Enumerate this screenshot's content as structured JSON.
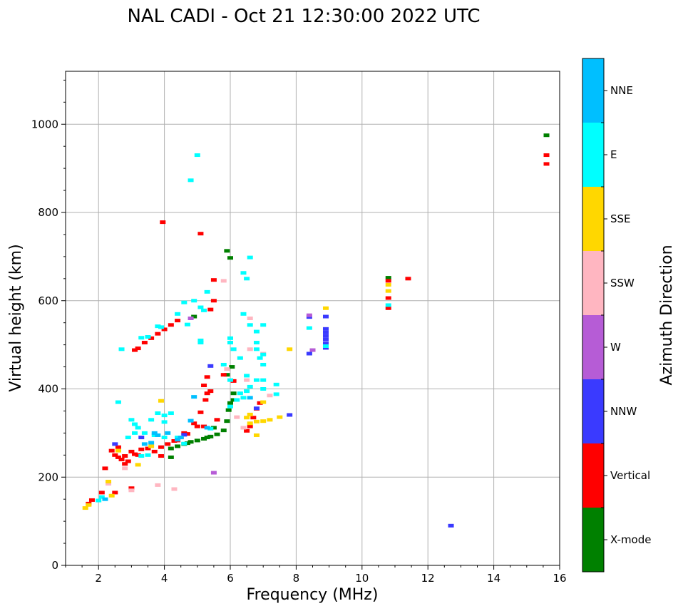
{
  "chart_data": {
    "type": "scatter",
    "title": "NAL CADI - Oct 21 12:30:00 2022 UTC",
    "xlabel": "Frequency (MHz)",
    "ylabel": "Virtual height (km)",
    "xlim": [
      1,
      16
    ],
    "ylim": [
      0,
      1120
    ],
    "xticks": [
      2,
      4,
      6,
      8,
      10,
      12,
      14,
      16
    ],
    "yticks": [
      0,
      200,
      400,
      600,
      800,
      1000
    ],
    "xtick_labels": [
      "2",
      "4",
      "6",
      "8",
      "10",
      "12",
      "14",
      "16"
    ],
    "ytick_labels": [
      "0",
      "200",
      "400",
      "600",
      "800",
      "1000"
    ],
    "grid": true,
    "colorbar": {
      "title": "Azimuth Direction",
      "categories": [
        "X-mode",
        "Vertical",
        "NNW",
        "W",
        "SSW",
        "SSE",
        "E",
        "NNE"
      ],
      "colors": [
        "#008000",
        "#ff0000",
        "#3a3aff",
        "#b65cd6",
        "#ffb6c1",
        "#ffd700",
        "#00ffff",
        "#00bfff"
      ]
    },
    "series": [
      {
        "name": "X-mode",
        "points": [
          [
            4.2,
            245
          ],
          [
            4.2,
            265
          ],
          [
            4.4,
            270
          ],
          [
            4.6,
            275
          ],
          [
            4.8,
            280
          ],
          [
            5.0,
            283
          ],
          [
            5.2,
            287
          ],
          [
            5.4,
            292
          ],
          [
            5.6,
            297
          ],
          [
            5.8,
            306
          ],
          [
            5.9,
            327
          ],
          [
            5.5,
            312
          ],
          [
            4.9,
            564
          ],
          [
            6.0,
            368
          ],
          [
            5.95,
            352
          ],
          [
            5.9,
            432
          ],
          [
            5.9,
            713
          ],
          [
            6.0,
            697
          ],
          [
            6.1,
            375
          ],
          [
            6.05,
            450
          ],
          [
            6.1,
            390
          ],
          [
            5.3,
            290
          ],
          [
            4.7,
            277
          ],
          [
            10.8,
            652
          ],
          [
            15.6,
            975
          ]
        ]
      },
      {
        "name": "Vertical",
        "points": [
          [
            1.7,
            140
          ],
          [
            1.8,
            148
          ],
          [
            2.1,
            165
          ],
          [
            2.2,
            220
          ],
          [
            2.4,
            260
          ],
          [
            2.5,
            250
          ],
          [
            2.6,
            245
          ],
          [
            2.7,
            240
          ],
          [
            2.8,
            248
          ],
          [
            2.9,
            236
          ],
          [
            3.0,
            258
          ],
          [
            3.1,
            252
          ],
          [
            3.3,
            263
          ],
          [
            3.5,
            265
          ],
          [
            3.7,
            258
          ],
          [
            3.9,
            268
          ],
          [
            4.1,
            275
          ],
          [
            4.3,
            282
          ],
          [
            4.5,
            290
          ],
          [
            4.7,
            298
          ],
          [
            4.9,
            322
          ],
          [
            5.1,
            347
          ],
          [
            5.2,
            408
          ],
          [
            5.3,
            427
          ],
          [
            5.25,
            375
          ],
          [
            5.3,
            390
          ],
          [
            5.4,
            395
          ],
          [
            5.5,
            647
          ],
          [
            5.5,
            600
          ],
          [
            5.4,
            580
          ],
          [
            5.1,
            752
          ],
          [
            3.95,
            778
          ],
          [
            3.1,
            488
          ],
          [
            3.2,
            492
          ],
          [
            3.4,
            505
          ],
          [
            3.6,
            515
          ],
          [
            3.8,
            525
          ],
          [
            4.0,
            535
          ],
          [
            4.2,
            545
          ],
          [
            4.4,
            555
          ],
          [
            6.5,
            305
          ],
          [
            6.6,
            315
          ],
          [
            6.7,
            335
          ],
          [
            6.8,
            355
          ],
          [
            6.9,
            368
          ],
          [
            5.6,
            330
          ],
          [
            2.6,
            268
          ],
          [
            2.8,
            230
          ],
          [
            3.0,
            175
          ],
          [
            2.5,
            165
          ],
          [
            10.8,
            583
          ],
          [
            10.8,
            606
          ],
          [
            10.8,
            645
          ],
          [
            11.4,
            650
          ],
          [
            15.6,
            910
          ],
          [
            15.6,
            930
          ],
          [
            4.6,
            300
          ],
          [
            5.0,
            315
          ],
          [
            5.2,
            315
          ],
          [
            5.8,
            432
          ],
          [
            6.1,
            418
          ],
          [
            4.4,
            283
          ],
          [
            3.2,
            250
          ],
          [
            3.9,
            248
          ]
        ]
      },
      {
        "name": "NNW",
        "points": [
          [
            5.4,
            452
          ],
          [
            6.8,
            356
          ],
          [
            7.8,
            341
          ],
          [
            8.4,
            563
          ],
          [
            8.4,
            480
          ],
          [
            8.9,
            493
          ],
          [
            8.9,
            503
          ],
          [
            8.9,
            512
          ],
          [
            8.9,
            520
          ],
          [
            8.9,
            528
          ],
          [
            8.9,
            536
          ],
          [
            8.9,
            564
          ],
          [
            12.7,
            90
          ],
          [
            4.6,
            296
          ],
          [
            3.3,
            290
          ],
          [
            2.5,
            275
          ]
        ]
      },
      {
        "name": "W",
        "points": [
          [
            5.5,
            210
          ],
          [
            8.5,
            488
          ],
          [
            8.4,
            567
          ],
          [
            4.8,
            560
          ]
        ]
      },
      {
        "name": "SSW",
        "points": [
          [
            3.0,
            170
          ],
          [
            3.8,
            182
          ],
          [
            4.3,
            173
          ],
          [
            5.8,
            645
          ],
          [
            6.6,
            560
          ],
          [
            6.5,
            420
          ],
          [
            6.2,
            336
          ],
          [
            6.4,
            312
          ],
          [
            7.2,
            385
          ],
          [
            2.3,
            185
          ],
          [
            2.8,
            220
          ],
          [
            5.9,
            445
          ],
          [
            7.0,
            480
          ],
          [
            6.6,
            490
          ]
        ]
      },
      {
        "name": "SSE",
        "points": [
          [
            1.6,
            130
          ],
          [
            1.7,
            137
          ],
          [
            2.3,
            190
          ],
          [
            2.4,
            158
          ],
          [
            3.6,
            270
          ],
          [
            3.9,
            373
          ],
          [
            6.6,
            322
          ],
          [
            6.8,
            326
          ],
          [
            7.0,
            327
          ],
          [
            7.2,
            330
          ],
          [
            7.5,
            336
          ],
          [
            7.8,
            490
          ],
          [
            8.9,
            583
          ],
          [
            10.8,
            622
          ],
          [
            10.8,
            636
          ],
          [
            6.6,
            342
          ],
          [
            6.5,
            335
          ],
          [
            2.6,
            260
          ],
          [
            3.2,
            228
          ],
          [
            7.0,
            370
          ],
          [
            6.8,
            295
          ]
        ]
      },
      {
        "name": "E",
        "points": [
          [
            5.0,
            930
          ],
          [
            4.8,
            873
          ],
          [
            6.6,
            698
          ],
          [
            6.4,
            663
          ],
          [
            6.5,
            650
          ],
          [
            5.3,
            620
          ],
          [
            4.6,
            596
          ],
          [
            4.9,
            600
          ],
          [
            5.1,
            585
          ],
          [
            4.4,
            570
          ],
          [
            4.7,
            546
          ],
          [
            5.2,
            578
          ],
          [
            3.8,
            542
          ],
          [
            3.5,
            518
          ],
          [
            3.3,
            516
          ],
          [
            3.9,
            540
          ],
          [
            6.4,
            570
          ],
          [
            6.6,
            545
          ],
          [
            6.8,
            530
          ],
          [
            7.0,
            545
          ],
          [
            6.8,
            505
          ],
          [
            6.8,
            490
          ],
          [
            6.9,
            470
          ],
          [
            7.0,
            478
          ],
          [
            7.0,
            455
          ],
          [
            6.8,
            420
          ],
          [
            7.0,
            420
          ],
          [
            7.4,
            410
          ],
          [
            7.4,
            388
          ],
          [
            6.3,
            390
          ],
          [
            6.4,
            380
          ],
          [
            6.5,
            395
          ],
          [
            6.6,
            405
          ],
          [
            6.2,
            375
          ],
          [
            6.5,
            430
          ],
          [
            6.0,
            505
          ],
          [
            6.0,
            515
          ],
          [
            6.1,
            490
          ],
          [
            5.8,
            455
          ],
          [
            5.1,
            505
          ],
          [
            5.1,
            510
          ],
          [
            3.8,
            345
          ],
          [
            4.0,
            340
          ],
          [
            4.2,
            345
          ],
          [
            4.0,
            325
          ],
          [
            3.6,
            330
          ],
          [
            3.0,
            330
          ],
          [
            3.1,
            320
          ],
          [
            3.2,
            312
          ],
          [
            2.9,
            290
          ],
          [
            3.1,
            300
          ],
          [
            3.4,
            300
          ],
          [
            3.7,
            295
          ],
          [
            4.0,
            290
          ],
          [
            4.4,
            290
          ],
          [
            4.6,
            276
          ],
          [
            3.3,
            248
          ],
          [
            3.5,
            250
          ],
          [
            2.1,
            155
          ],
          [
            2.0,
            147
          ],
          [
            2.6,
            370
          ],
          [
            5.4,
            310
          ],
          [
            2.7,
            490
          ],
          [
            8.4,
            538
          ],
          [
            8.9,
            497
          ],
          [
            10.8,
            590
          ],
          [
            6.0,
            420
          ],
          [
            6.3,
            470
          ],
          [
            6.0,
            360
          ],
          [
            7.0,
            400
          ]
        ]
      },
      {
        "name": "NNE",
        "points": [
          [
            4.9,
            382
          ],
          [
            5.3,
            312
          ],
          [
            4.8,
            328
          ],
          [
            3.8,
            295
          ],
          [
            3.7,
            300
          ],
          [
            4.1,
            300
          ],
          [
            4.5,
            290
          ],
          [
            4.4,
            285
          ],
          [
            2.2,
            150
          ],
          [
            3.4,
            275
          ],
          [
            3.6,
            278
          ],
          [
            6.6,
            380
          ]
        ]
      }
    ]
  }
}
